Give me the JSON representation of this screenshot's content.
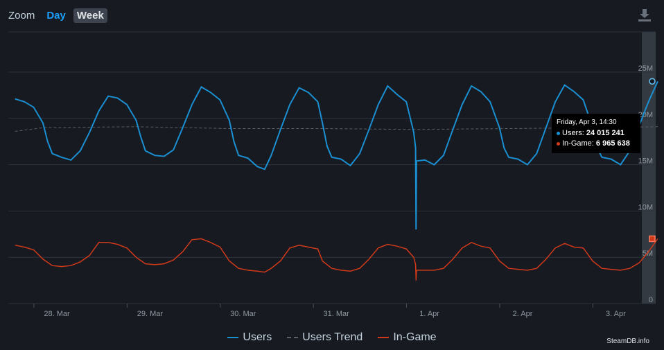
{
  "zoom": {
    "label": "Zoom",
    "options": [
      "Day",
      "Week"
    ]
  },
  "credit": "SteamDB.info",
  "tooltip": {
    "date": "Friday, Apr 3, 14:30",
    "users_label": "Users:",
    "users_value": "24 015 241",
    "ingame_label": "In-Game:",
    "ingame_value": "6 965 638"
  },
  "colors": {
    "users": "#1a8fd1",
    "trend": "#5a6068",
    "ingame": "#d0391a",
    "grid": "#2d333c",
    "navigator": "#343a42"
  },
  "icons": {
    "download": "download-icon"
  },
  "chart_data": {
    "type": "line",
    "x_ticks": [
      "28. Mar",
      "29. Mar",
      "30. Mar",
      "31. Mar",
      "1. Apr",
      "2. Apr",
      "3. Apr"
    ],
    "y_ticks": [
      "0",
      "5M",
      "10M",
      "15M",
      "20M",
      "25M"
    ],
    "ylim": [
      0,
      25000000
    ],
    "x_range_days": [
      -0.3,
      6.6
    ],
    "legend": [
      "Users",
      "Users Trend",
      "In-Game"
    ],
    "series": [
      {
        "name": "Users",
        "points": [
          [
            -0.3,
            22.1
          ],
          [
            -0.2,
            21.8
          ],
          [
            -0.1,
            21.2
          ],
          [
            0.0,
            19.5
          ],
          [
            0.05,
            17.5
          ],
          [
            0.1,
            16.2
          ],
          [
            0.2,
            15.8
          ],
          [
            0.3,
            15.5
          ],
          [
            0.4,
            16.5
          ],
          [
            0.5,
            18.5
          ],
          [
            0.6,
            20.8
          ],
          [
            0.7,
            22.4
          ],
          [
            0.8,
            22.2
          ],
          [
            0.9,
            21.5
          ],
          [
            1.0,
            19.8
          ],
          [
            1.05,
            18.0
          ],
          [
            1.1,
            16.5
          ],
          [
            1.2,
            16.0
          ],
          [
            1.3,
            15.9
          ],
          [
            1.4,
            16.6
          ],
          [
            1.5,
            19.0
          ],
          [
            1.6,
            21.5
          ],
          [
            1.7,
            23.4
          ],
          [
            1.8,
            22.8
          ],
          [
            1.9,
            22.0
          ],
          [
            2.0,
            19.8
          ],
          [
            2.05,
            17.5
          ],
          [
            2.1,
            16.0
          ],
          [
            2.2,
            15.7
          ],
          [
            2.3,
            14.8
          ],
          [
            2.38,
            14.5
          ],
          [
            2.45,
            16.0
          ],
          [
            2.55,
            18.8
          ],
          [
            2.65,
            21.5
          ],
          [
            2.75,
            23.3
          ],
          [
            2.85,
            22.8
          ],
          [
            2.95,
            21.8
          ],
          [
            3.0,
            19.5
          ],
          [
            3.05,
            17.0
          ],
          [
            3.1,
            15.8
          ],
          [
            3.2,
            15.6
          ],
          [
            3.3,
            14.9
          ],
          [
            3.4,
            16.2
          ],
          [
            3.5,
            18.8
          ],
          [
            3.6,
            21.5
          ],
          [
            3.7,
            23.5
          ],
          [
            3.8,
            22.6
          ],
          [
            3.9,
            21.8
          ],
          [
            3.98,
            18.5
          ],
          [
            4.0,
            16.8
          ],
          [
            4.005,
            8.0
          ],
          [
            4.01,
            15.4
          ],
          [
            4.1,
            15.5
          ],
          [
            4.2,
            15.0
          ],
          [
            4.3,
            16.0
          ],
          [
            4.4,
            18.8
          ],
          [
            4.5,
            21.5
          ],
          [
            4.6,
            23.5
          ],
          [
            4.7,
            22.9
          ],
          [
            4.8,
            21.8
          ],
          [
            4.9,
            19.0
          ],
          [
            4.95,
            16.8
          ],
          [
            5.0,
            15.8
          ],
          [
            5.1,
            15.6
          ],
          [
            5.2,
            15.0
          ],
          [
            5.3,
            16.2
          ],
          [
            5.4,
            19.0
          ],
          [
            5.5,
            21.8
          ],
          [
            5.6,
            23.6
          ],
          [
            5.7,
            22.9
          ],
          [
            5.8,
            22.0
          ],
          [
            5.9,
            19.0
          ],
          [
            5.95,
            16.8
          ],
          [
            6.0,
            15.8
          ],
          [
            6.1,
            15.6
          ],
          [
            6.2,
            15.0
          ],
          [
            6.3,
            16.5
          ],
          [
            6.4,
            19.2
          ],
          [
            6.5,
            21.8
          ],
          [
            6.6,
            24.0
          ]
        ]
      },
      {
        "name": "Users Trend",
        "points": [
          [
            -0.3,
            18.6
          ],
          [
            0.0,
            19.0
          ],
          [
            1.0,
            19.1
          ],
          [
            2.0,
            18.9
          ],
          [
            3.0,
            18.9
          ],
          [
            4.0,
            18.8
          ],
          [
            5.0,
            18.9
          ],
          [
            6.0,
            19.0
          ],
          [
            6.6,
            19.1
          ]
        ]
      },
      {
        "name": "In-Game",
        "points": [
          [
            -0.3,
            6.3
          ],
          [
            -0.2,
            6.1
          ],
          [
            -0.1,
            5.8
          ],
          [
            0.0,
            4.8
          ],
          [
            0.1,
            4.1
          ],
          [
            0.2,
            4.0
          ],
          [
            0.3,
            4.1
          ],
          [
            0.4,
            4.5
          ],
          [
            0.5,
            5.2
          ],
          [
            0.6,
            6.6
          ],
          [
            0.7,
            6.6
          ],
          [
            0.8,
            6.4
          ],
          [
            0.9,
            6.0
          ],
          [
            1.0,
            5.0
          ],
          [
            1.1,
            4.3
          ],
          [
            1.2,
            4.2
          ],
          [
            1.3,
            4.3
          ],
          [
            1.4,
            4.7
          ],
          [
            1.5,
            5.6
          ],
          [
            1.6,
            6.9
          ],
          [
            1.7,
            7.0
          ],
          [
            1.8,
            6.6
          ],
          [
            1.9,
            6.1
          ],
          [
            2.0,
            4.6
          ],
          [
            2.1,
            3.8
          ],
          [
            2.2,
            3.6
          ],
          [
            2.3,
            3.5
          ],
          [
            2.38,
            3.4
          ],
          [
            2.45,
            3.8
          ],
          [
            2.55,
            4.6
          ],
          [
            2.65,
            6.0
          ],
          [
            2.75,
            6.3
          ],
          [
            2.85,
            6.1
          ],
          [
            2.95,
            5.9
          ],
          [
            3.0,
            4.6
          ],
          [
            3.1,
            3.8
          ],
          [
            3.2,
            3.6
          ],
          [
            3.3,
            3.5
          ],
          [
            3.4,
            3.8
          ],
          [
            3.5,
            4.8
          ],
          [
            3.6,
            6.0
          ],
          [
            3.7,
            6.4
          ],
          [
            3.8,
            6.2
          ],
          [
            3.9,
            5.9
          ],
          [
            3.98,
            5.0
          ],
          [
            4.0,
            4.2
          ],
          [
            4.005,
            2.5
          ],
          [
            4.01,
            3.6
          ],
          [
            4.1,
            3.6
          ],
          [
            4.2,
            3.6
          ],
          [
            4.3,
            3.8
          ],
          [
            4.4,
            4.8
          ],
          [
            4.5,
            6.0
          ],
          [
            4.6,
            6.6
          ],
          [
            4.7,
            6.2
          ],
          [
            4.8,
            6.0
          ],
          [
            4.9,
            4.6
          ],
          [
            5.0,
            3.8
          ],
          [
            5.1,
            3.7
          ],
          [
            5.2,
            3.6
          ],
          [
            5.3,
            3.8
          ],
          [
            5.4,
            4.8
          ],
          [
            5.5,
            6.0
          ],
          [
            5.6,
            6.5
          ],
          [
            5.7,
            6.1
          ],
          [
            5.8,
            6.0
          ],
          [
            5.9,
            4.6
          ],
          [
            6.0,
            3.8
          ],
          [
            6.1,
            3.7
          ],
          [
            6.2,
            3.6
          ],
          [
            6.3,
            3.8
          ],
          [
            6.4,
            4.4
          ],
          [
            6.5,
            5.6
          ],
          [
            6.6,
            7.0
          ]
        ]
      }
    ]
  }
}
